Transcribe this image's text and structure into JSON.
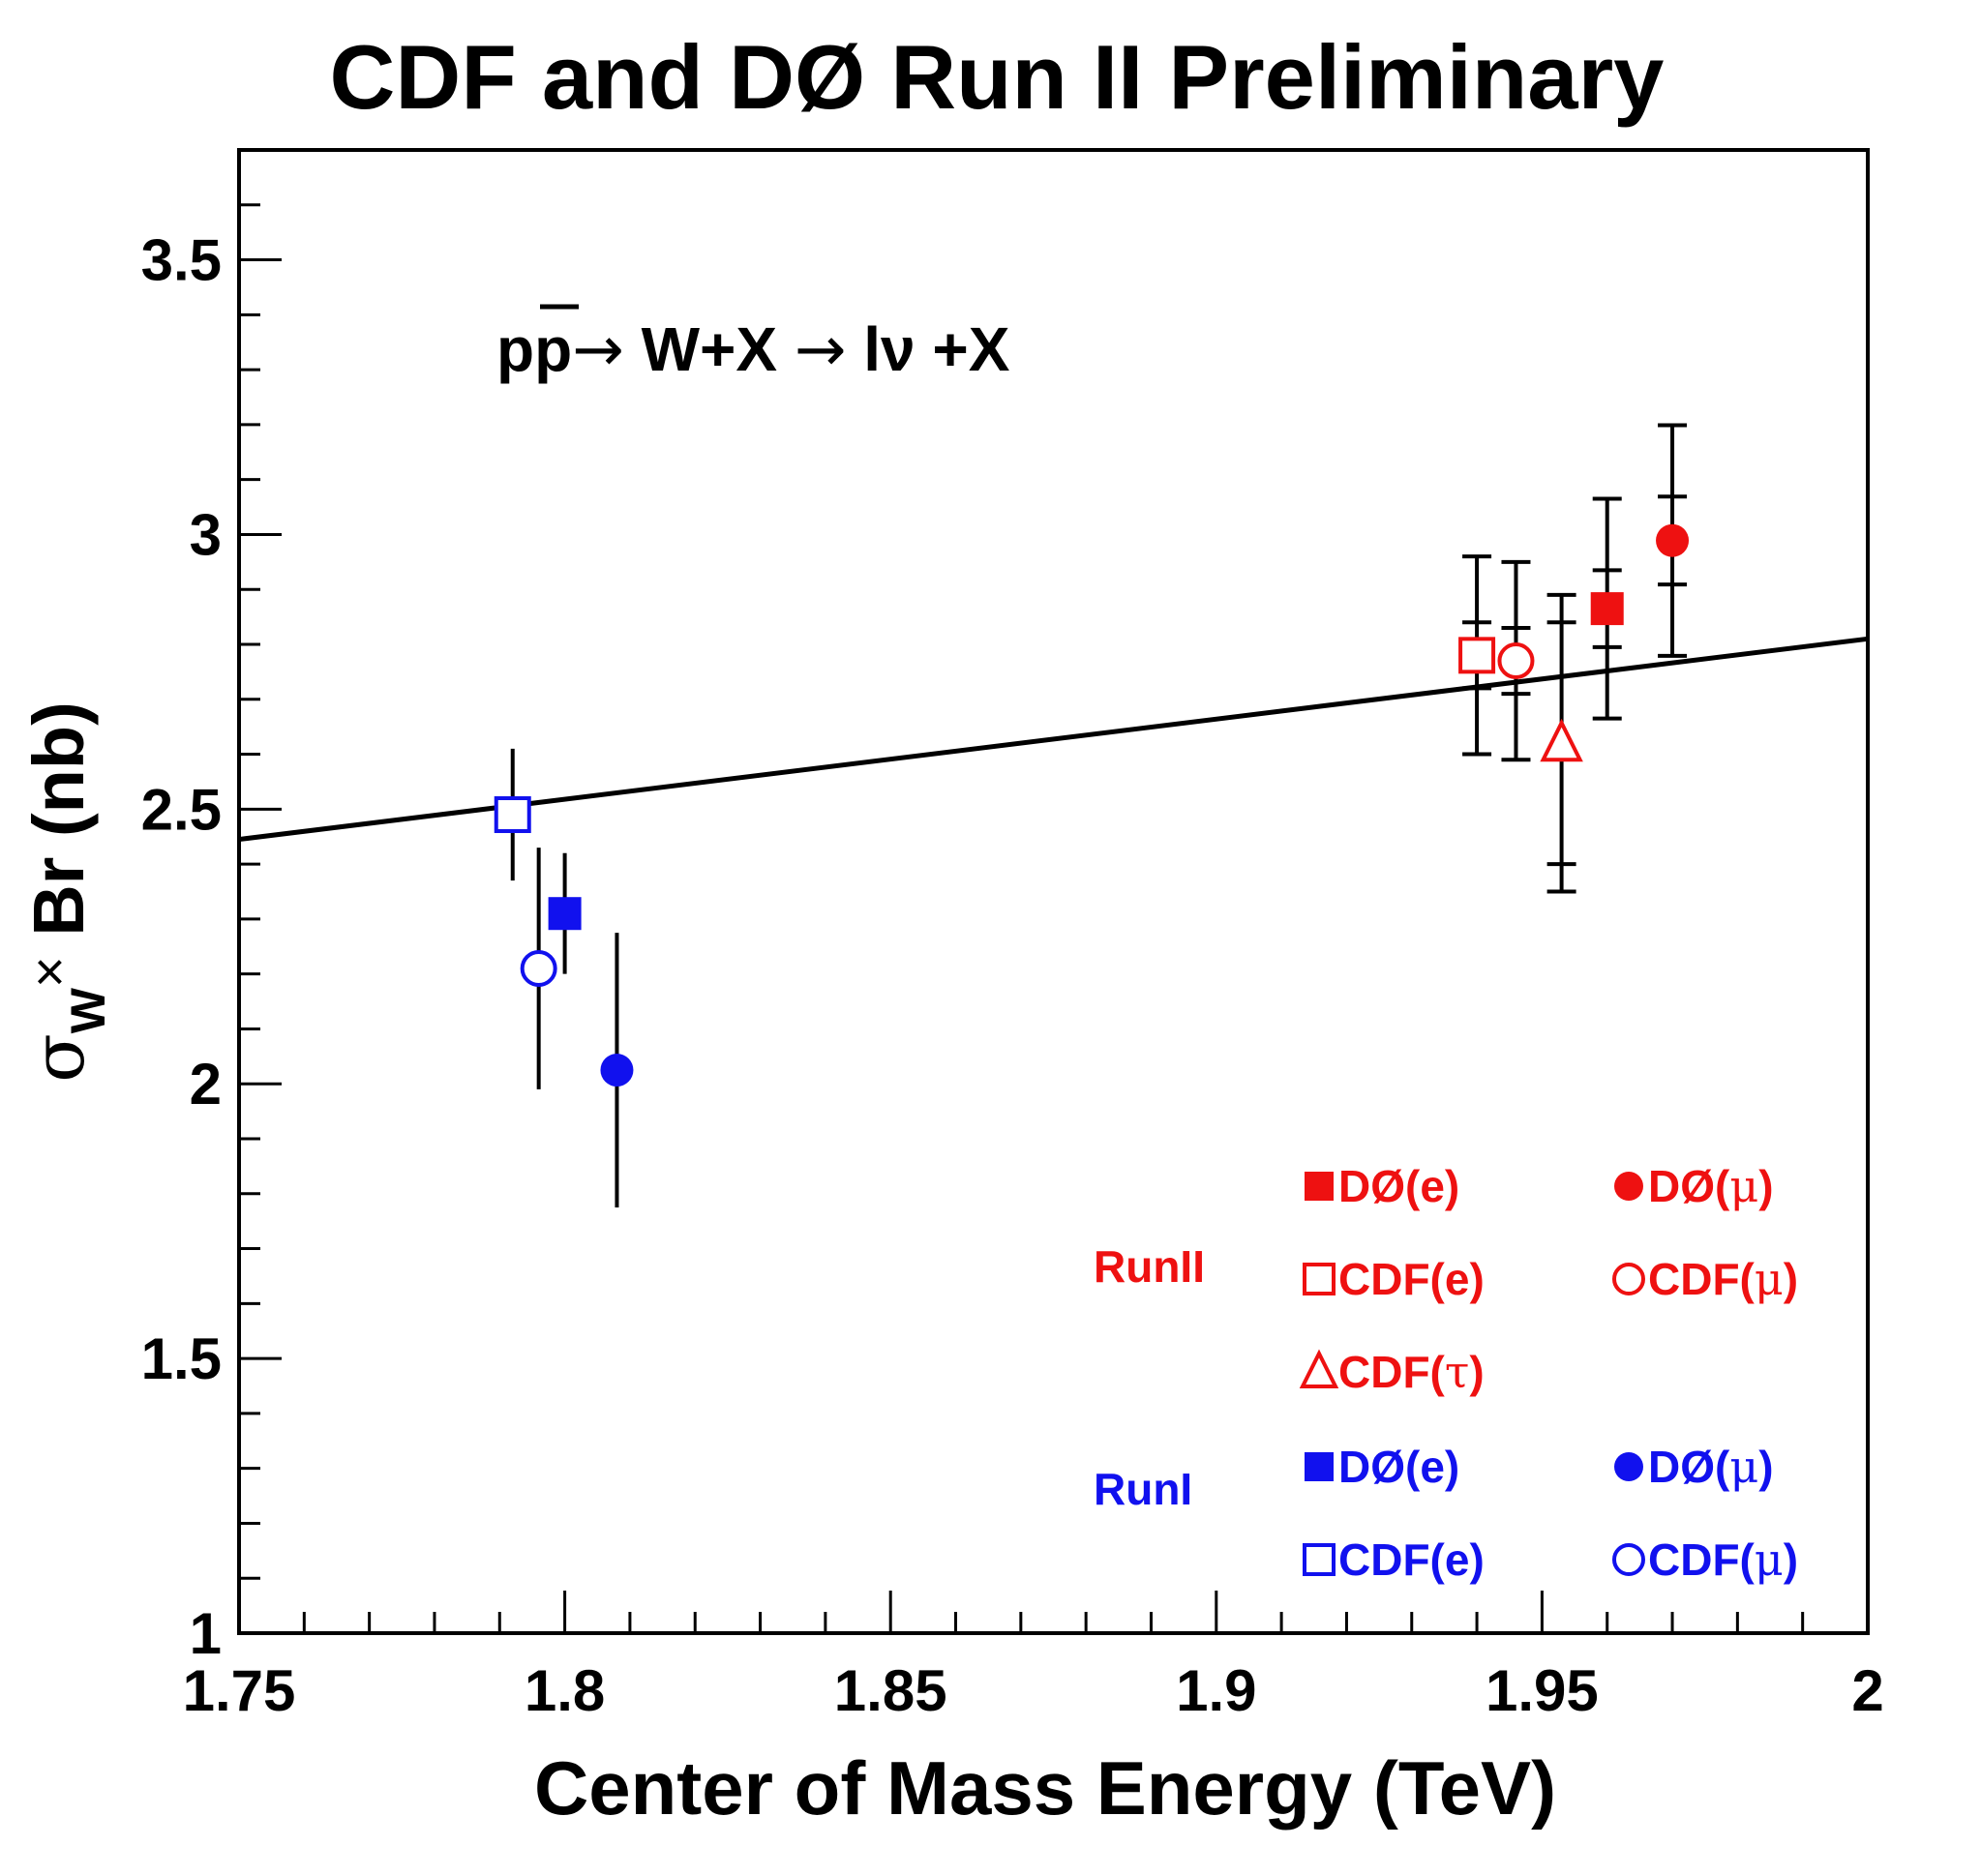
{
  "chart_data": {
    "type": "scatter",
    "title": "CDF and DØ Run II Preliminary",
    "xlabel": "Center of Mass Energy (TeV)",
    "ylabel": {
      "sigma": "σ",
      "sub": "W",
      "times": "×",
      "rest": " Br (nb)"
    },
    "xlim": [
      1.75,
      2.0
    ],
    "ylim": [
      1.0,
      3.7
    ],
    "xticks": [
      {
        "value": 1.75,
        "label": "1.75"
      },
      {
        "value": 1.8,
        "label": "1.8"
      },
      {
        "value": 1.85,
        "label": "1.85"
      },
      {
        "value": 1.9,
        "label": "1.9"
      },
      {
        "value": 1.95,
        "label": "1.95"
      },
      {
        "value": 2.0,
        "label": "2"
      }
    ],
    "yticks": [
      {
        "value": 1.0,
        "label": "1"
      },
      {
        "value": 1.5,
        "label": "1.5"
      },
      {
        "value": 2.0,
        "label": "2"
      },
      {
        "value": 2.5,
        "label": "2.5"
      },
      {
        "value": 3.0,
        "label": "3"
      },
      {
        "value": 3.5,
        "label": "3.5"
      }
    ],
    "annotation": {
      "p": "p",
      "pbar": "p",
      "arrow1": "→",
      "mid": " W+X ",
      "arrow2": "→",
      "lv": " lν +X"
    },
    "theory_line": {
      "x": [
        1.75,
        2.0
      ],
      "y": [
        2.445,
        2.81
      ]
    },
    "series": [
      {
        "name": "DØ(e) Run II",
        "x": 1.96,
        "y": 2.865,
        "stat": 0.07,
        "tot": 0.2,
        "marker": "square-filled",
        "color": "#ee1111"
      },
      {
        "name": "DØ(μ) Run II",
        "x": 1.97,
        "y": 2.989,
        "stat": 0.08,
        "tot": 0.21,
        "marker": "circle-filled",
        "color": "#ee1111"
      },
      {
        "name": "CDF(e) Run II",
        "x": 1.94,
        "y": 2.78,
        "stat": 0.06,
        "tot": 0.18,
        "marker": "square-open",
        "color": "#ee1111"
      },
      {
        "name": "CDF(μ) Run II",
        "x": 1.946,
        "y": 2.77,
        "stat": 0.06,
        "tot": 0.18,
        "marker": "circle-open",
        "color": "#ee1111"
      },
      {
        "name": "CDF(τ) Run II",
        "x": 1.953,
        "y": 2.62,
        "stat": 0.22,
        "tot": 0.27,
        "marker": "triangle-open",
        "color": "#ee1111"
      },
      {
        "name": "DØ(e) Run I",
        "x": 1.8,
        "y": 2.31,
        "stat": 0.11,
        "tot": 0.11,
        "marker": "square-filled",
        "color": "#1111ee"
      },
      {
        "name": "DØ(μ) Run I",
        "x": 1.808,
        "y": 2.025,
        "stat": 0.25,
        "tot": 0.25,
        "marker": "circle-filled",
        "color": "#1111ee"
      },
      {
        "name": "CDF(e) Run I",
        "x": 1.792,
        "y": 2.49,
        "stat": 0.12,
        "tot": 0.12,
        "marker": "square-open",
        "color": "#1111ee"
      },
      {
        "name": "CDF(μ) Run I",
        "x": 1.796,
        "y": 2.21,
        "stat": 0.22,
        "tot": 0.22,
        "marker": "circle-open",
        "color": "#1111ee"
      }
    ],
    "legend": {
      "position": "bottom-right",
      "run2_label": "RunII",
      "run1_label": "RunI",
      "run2_color": "#ee1111",
      "run1_color": "#1111ee",
      "run2_entries": [
        {
          "marker": "square-filled",
          "pre": "DØ(",
          "sym": "e",
          "post": ")",
          "symfont": "sans"
        },
        {
          "marker": "circle-filled",
          "pre": "DØ(",
          "sym": "μ",
          "post": ")",
          "symfont": "serif"
        },
        {
          "marker": "square-open",
          "pre": "CDF(",
          "sym": "e",
          "post": ")",
          "symfont": "sans"
        },
        {
          "marker": "circle-open",
          "pre": "CDF(",
          "sym": "μ",
          "post": ")",
          "symfont": "serif"
        },
        {
          "marker": "triangle-open",
          "pre": "CDF(",
          "sym": "τ",
          "post": ")",
          "symfont": "serif"
        }
      ],
      "run1_entries": [
        {
          "marker": "square-filled",
          "pre": "DØ(",
          "sym": "e",
          "post": ")",
          "symfont": "sans"
        },
        {
          "marker": "circle-filled",
          "pre": "DØ(",
          "sym": "μ",
          "post": ")",
          "symfont": "serif"
        },
        {
          "marker": "square-open",
          "pre": "CDF(",
          "sym": "e",
          "post": ")",
          "symfont": "sans"
        },
        {
          "marker": "circle-open",
          "pre": "CDF(",
          "sym": "μ",
          "post": ")",
          "symfont": "serif"
        }
      ]
    }
  }
}
